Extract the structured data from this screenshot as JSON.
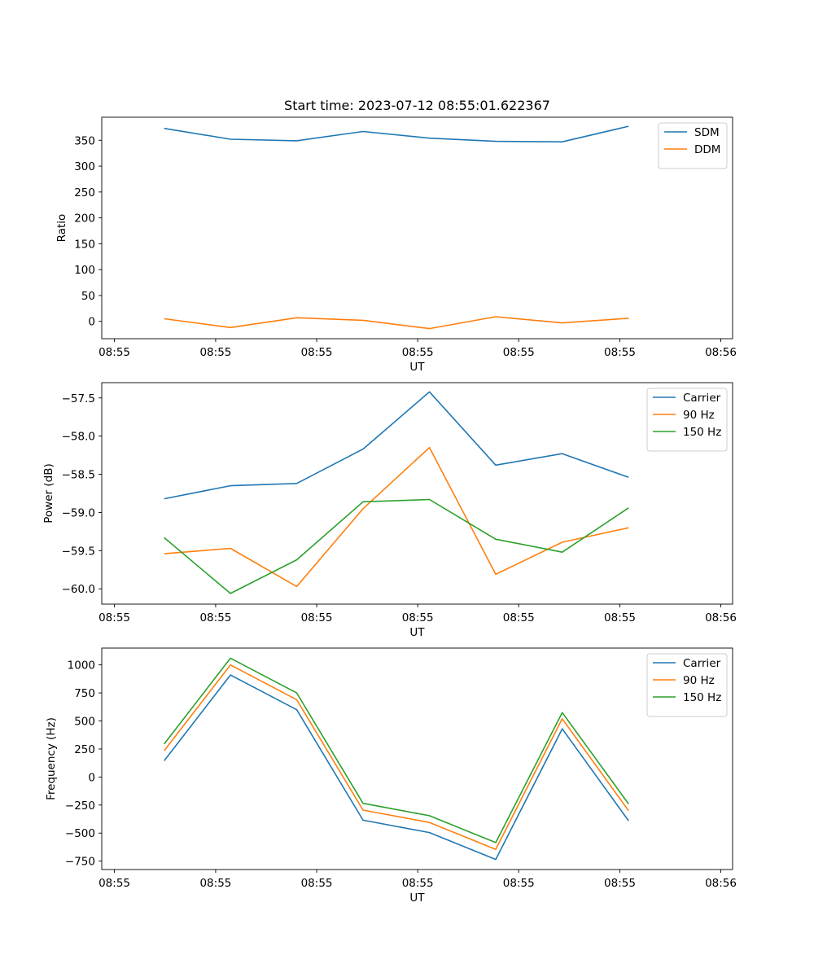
{
  "chart_data": [
    {
      "type": "line",
      "title": "Start time: 2023-07-12 08:55:01.622367",
      "xlabel": "UT",
      "ylabel": "Ratio",
      "ylim": [
        -33.5,
        394.5
      ],
      "yticks": [
        0,
        50,
        100,
        150,
        200,
        250,
        300,
        350
      ],
      "ytick_labels": [
        "0",
        "50",
        "100",
        "150",
        "200",
        "250",
        "300",
        "350"
      ],
      "xlim": [
        0,
        9.266
      ],
      "xticks": [
        0.186,
        1.673,
        3.157,
        4.641,
        6.124,
        7.61,
        9.093
      ],
      "xtick_labels": [
        "08:55",
        "08:55",
        "08:55",
        "08:55",
        "08:55",
        "08:55",
        "08:56"
      ],
      "grid": false,
      "legend": "upper right",
      "x": [
        0.917,
        1.89,
        2.864,
        3.838,
        4.813,
        5.787,
        6.763,
        7.738
      ],
      "series": [
        {
          "name": "SDM",
          "color": "#1f77b4",
          "values": [
            373,
            352,
            349,
            367,
            354,
            348,
            347,
            377
          ]
        },
        {
          "name": "DDM",
          "color": "#ff7f0e",
          "values": [
            5,
            -12,
            7,
            2,
            -14,
            9,
            -3,
            6
          ]
        }
      ]
    },
    {
      "type": "line",
      "title": "",
      "xlabel": "UT",
      "ylabel": "Power (dB)",
      "ylim": [
        -60.2,
        -57.3
      ],
      "yticks": [
        -60.0,
        -59.5,
        -59.0,
        -58.5,
        -58.0,
        -57.5
      ],
      "ytick_labels": [
        "−60.0",
        "−59.5",
        "−59.0",
        "−58.5",
        "−58.0",
        "−57.5"
      ],
      "xlim": [
        0,
        9.266
      ],
      "xticks": [
        0.186,
        1.673,
        3.157,
        4.641,
        6.124,
        7.61,
        9.093
      ],
      "xtick_labels": [
        "08:55",
        "08:55",
        "08:55",
        "08:55",
        "08:55",
        "08:55",
        "08:56"
      ],
      "grid": false,
      "legend": "upper right",
      "x": [
        0.917,
        1.89,
        2.864,
        3.838,
        4.813,
        5.787,
        6.763,
        7.738
      ],
      "series": [
        {
          "name": "Carrier",
          "color": "#1f77b4",
          "values": [
            -58.82,
            -58.65,
            -58.62,
            -58.17,
            -57.42,
            -58.38,
            -58.23,
            -58.54
          ]
        },
        {
          "name": "90 Hz",
          "color": "#ff7f0e",
          "values": [
            -59.54,
            -59.47,
            -59.97,
            -58.95,
            -58.15,
            -59.81,
            -59.39,
            -59.2
          ]
        },
        {
          "name": "150 Hz",
          "color": "#2ca02c",
          "values": [
            -59.33,
            -60.06,
            -59.62,
            -58.86,
            -58.83,
            -59.35,
            -59.52,
            -58.94
          ]
        }
      ]
    },
    {
      "type": "line",
      "title": "",
      "xlabel": "UT",
      "ylabel": "Frequency (Hz)",
      "ylim": [
        -825,
        1150
      ],
      "yticks": [
        -750,
        -500,
        -250,
        0,
        250,
        500,
        750,
        1000
      ],
      "ytick_labels": [
        "−750",
        "−500",
        "−250",
        "0",
        "250",
        "500",
        "750",
        "1000"
      ],
      "xlim": [
        0,
        9.266
      ],
      "xticks": [
        0.186,
        1.673,
        3.157,
        4.641,
        6.124,
        7.61,
        9.093
      ],
      "xtick_labels": [
        "08:55",
        "08:55",
        "08:55",
        "08:55",
        "08:55",
        "08:55",
        "08:56"
      ],
      "grid": false,
      "legend": "upper right",
      "x": [
        0.917,
        1.89,
        2.864,
        3.838,
        4.813,
        5.787,
        6.763,
        7.738
      ],
      "series": [
        {
          "name": "Carrier",
          "color": "#1f77b4",
          "values": [
            145,
            910,
            600,
            -385,
            -495,
            -735,
            430,
            -390
          ]
        },
        {
          "name": "90 Hz",
          "color": "#ff7f0e",
          "values": [
            235,
            1000,
            690,
            -295,
            -405,
            -645,
            520,
            -300
          ]
        },
        {
          "name": "150 Hz",
          "color": "#2ca02c",
          "values": [
            295,
            1060,
            750,
            -235,
            -345,
            -585,
            575,
            -240
          ]
        }
      ]
    }
  ]
}
